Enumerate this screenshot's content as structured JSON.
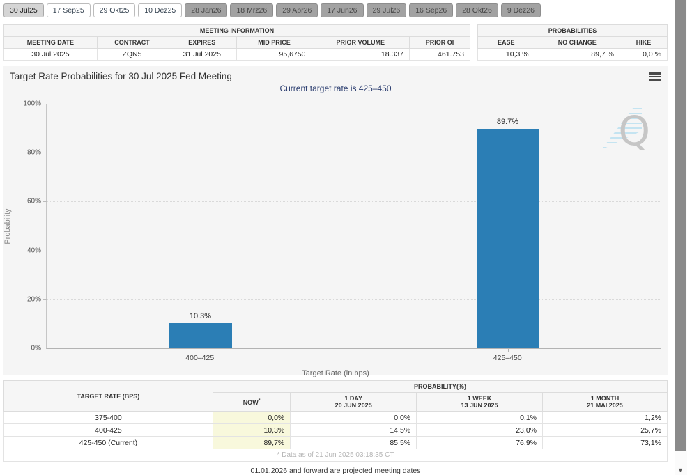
{
  "tabs": [
    {
      "label": "30 Jul25",
      "state": "active"
    },
    {
      "label": "17 Sep25",
      "state": "default"
    },
    {
      "label": "29 Okt25",
      "state": "default"
    },
    {
      "label": "10 Dez25",
      "state": "default"
    },
    {
      "label": "28 Jan26",
      "state": "disabled"
    },
    {
      "label": "18 Mrz26",
      "state": "disabled"
    },
    {
      "label": "29 Apr26",
      "state": "disabled"
    },
    {
      "label": "17 Jun26",
      "state": "disabled"
    },
    {
      "label": "29 Jul26",
      "state": "disabled"
    },
    {
      "label": "16 Sep26",
      "state": "disabled"
    },
    {
      "label": "28 Okt26",
      "state": "disabled"
    },
    {
      "label": "9 Dez26",
      "state": "disabled"
    }
  ],
  "meeting_info": {
    "title": "MEETING INFORMATION",
    "headers": [
      "MEETING DATE",
      "CONTRACT",
      "EXPIRES",
      "MID PRICE",
      "PRIOR VOLUME",
      "PRIOR OI"
    ],
    "values": [
      "30 Jul 2025",
      "ZQN5",
      "31 Jul 2025",
      "95,6750",
      "18.337",
      "461.753"
    ]
  },
  "probabilities_summary": {
    "title": "PROBABILITIES",
    "headers": [
      "EASE",
      "NO CHANGE",
      "HIKE"
    ],
    "values": [
      "10,3 %",
      "89,7 %",
      "0,0 %"
    ]
  },
  "chart_data": {
    "type": "bar",
    "title": "Target Rate Probabilities for 30 Jul 2025 Fed Meeting",
    "subtitle": "Current target rate is 425–450",
    "categories": [
      "400–425",
      "425–450"
    ],
    "values": [
      10.3,
      89.7
    ],
    "bar_labels": [
      "10.3%",
      "89.7%"
    ],
    "xlabel": "Target Rate (in bps)",
    "ylabel": "Probability",
    "ylim": [
      0,
      100
    ],
    "yticks": [
      "0%",
      "20%",
      "40%",
      "60%",
      "80%",
      "100%"
    ],
    "grid": "dotted horizontal",
    "legend": "none",
    "bar_color": "#2b7eb5"
  },
  "prob_table": {
    "rate_header": "TARGET RATE (BPS)",
    "span_header": "PROBABILITY(%)",
    "col_now": {
      "label": "NOW",
      "sup": "*"
    },
    "col_1day": {
      "line1": "1 DAY",
      "line2": "20 JUN 2025"
    },
    "col_1week": {
      "line1": "1 WEEK",
      "line2": "13 JUN 2025"
    },
    "col_1month": {
      "line1": "1 MONTH",
      "line2": "21 MAI 2025"
    },
    "rows": [
      [
        "375-400",
        "0,0%",
        "0,0%",
        "0,1%",
        "1,2%"
      ],
      [
        "400-425",
        "10,3%",
        "14,5%",
        "23,0%",
        "25,7%"
      ],
      [
        "425-450 (Current)",
        "89,7%",
        "85,5%",
        "76,9%",
        "73,1%"
      ]
    ],
    "footnote": "* Data as of 21 Jun 2025 03:18:35 CT"
  },
  "page_note": "01.01.2026 and forward are projected meeting dates",
  "icons": {
    "menu": "hamburger-menu",
    "watermark_letter": "Q",
    "scroll_down_arrow": "▼"
  }
}
